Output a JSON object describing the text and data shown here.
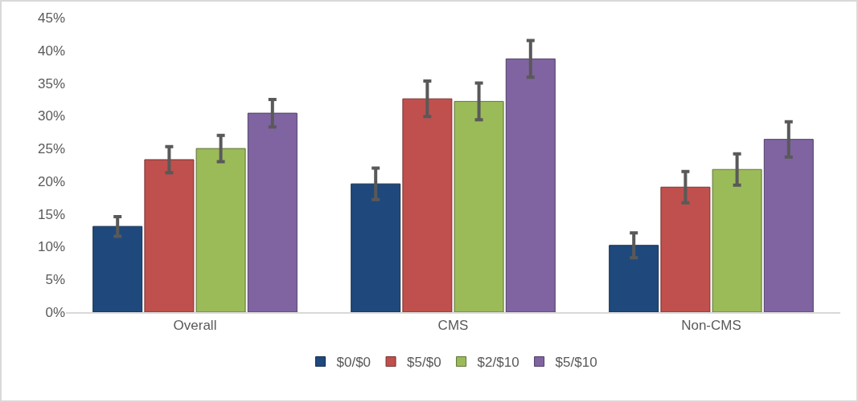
{
  "chart_data": {
    "type": "bar",
    "categories": [
      "Overall",
      "CMS",
      "Non-CMS"
    ],
    "series": [
      {
        "name": "$0/$0",
        "color": "#1f497d",
        "values": [
          13.1,
          19.6,
          10.2
        ],
        "errors": [
          1.5,
          2.4,
          1.9
        ]
      },
      {
        "name": "$5/$0",
        "color": "#c0504d",
        "values": [
          23.3,
          32.6,
          19.1
        ],
        "errors": [
          2.0,
          2.7,
          2.4
        ]
      },
      {
        "name": "$2/$10",
        "color": "#9bbb59",
        "values": [
          25.0,
          32.2,
          21.8
        ],
        "errors": [
          2.0,
          2.8,
          2.4
        ]
      },
      {
        "name": "$5/$10",
        "color": "#8064a2",
        "values": [
          30.4,
          38.7,
          26.4
        ],
        "errors": [
          2.1,
          2.8,
          2.7
        ]
      }
    ],
    "ylim": [
      0,
      45
    ],
    "yticks": [
      {
        "value": 0,
        "label": "0%"
      },
      {
        "value": 5,
        "label": "5%"
      },
      {
        "value": 10,
        "label": "10%"
      },
      {
        "value": 15,
        "label": "15%"
      },
      {
        "value": 20,
        "label": "20%"
      },
      {
        "value": 25,
        "label": "25%"
      },
      {
        "value": 30,
        "label": "30%"
      },
      {
        "value": 35,
        "label": "35%"
      },
      {
        "value": 40,
        "label": "40%"
      },
      {
        "value": 45,
        "label": "45%"
      }
    ],
    "grid": false,
    "legend": "bottom"
  }
}
